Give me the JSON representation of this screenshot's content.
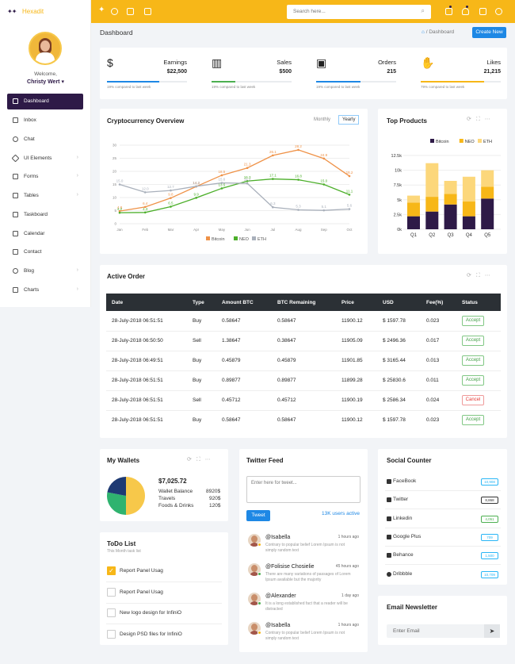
{
  "brand": {
    "name": "Hexadit"
  },
  "search": {
    "placeholder": "Search here..."
  },
  "user": {
    "welcome": "Welcome,",
    "name": "Christy Wert"
  },
  "sidebar": {
    "items": [
      {
        "label": "Dashboard"
      },
      {
        "label": "Inbox"
      },
      {
        "label": "Chat"
      },
      {
        "label": "UI Elements"
      },
      {
        "label": "Forms"
      },
      {
        "label": "Tables"
      },
      {
        "label": "Taskboard"
      },
      {
        "label": "Calendar"
      },
      {
        "label": "Contact"
      },
      {
        "label": "Blog"
      },
      {
        "label": "Charts"
      }
    ]
  },
  "page": {
    "title": "Dashboard",
    "breadcrumb": "Dashboard",
    "create_label": "Create New"
  },
  "stats": [
    {
      "label": "Earnings",
      "value": "$22,500",
      "note": "19% compared to last week",
      "progress": 0.65,
      "color": "#1e88e5",
      "icon": "dollar-icon"
    },
    {
      "label": "Sales",
      "value": "$500",
      "note": "19% compared to last week",
      "progress": 0.3,
      "color": "#4caf50",
      "icon": "bar-chart-icon"
    },
    {
      "label": "Orders",
      "value": "215",
      "note": "19% compared to last week",
      "progress": 0.55,
      "color": "#1e88e5",
      "icon": "cart-icon"
    },
    {
      "label": "Likes",
      "value": "21,215",
      "note": "79% compared to last week",
      "progress": 0.79,
      "color": "#f7b718",
      "icon": "thumbs-up-icon"
    }
  ],
  "crypto": {
    "title": "Cryptocurrency Overview",
    "monthly_label": "Monthly",
    "yearly_label": "Yearly"
  },
  "top_products": {
    "title": "Top Products"
  },
  "chart_data": [
    {
      "type": "line",
      "title": "Cryptocurrency Overview",
      "x": [
        "Jan",
        "Feb",
        "Mar",
        "Apr",
        "May",
        "Jun",
        "Jul",
        "Aug",
        "Sep",
        "Oct"
      ],
      "ylim": [
        0,
        30
      ],
      "series": [
        {
          "name": "Bitcoin",
          "color": "#ef9248",
          "values": [
            4.8,
            6.4,
            9.8,
            14.2,
            18.5,
            21.3,
            26.1,
            28.2,
            24.9,
            18.2
          ]
        },
        {
          "name": "NEO",
          "color": "#4caf2a",
          "values": [
            4.2,
            4.3,
            6.5,
            9.9,
            13.5,
            16.3,
            17.1,
            16.8,
            15.0,
            11.1
          ]
        },
        {
          "name": "ETH",
          "color": "#a9b0bb",
          "values": [
            15.0,
            12.0,
            12.7,
            14.3,
            15.6,
            15.4,
            6.3,
            5.3,
            5.1,
            5.6
          ]
        }
      ],
      "labels": {
        "Bitcoin": [
          "4.8",
          "6.4",
          "9.8",
          "14.2",
          "18.5",
          "21.3",
          "26.1",
          "28.2",
          "24.9",
          "18.2"
        ],
        "NEO": [
          "4.2",
          "4.3",
          "6.5",
          "9.9",
          "13.5",
          "16.3",
          "17.1",
          "16.8",
          "15.0",
          "11.1"
        ],
        "ETH": [
          "15.0",
          "12.0",
          "12.7",
          "14.3",
          "15.6",
          "15.4",
          "6.3",
          "5.3",
          "5.1",
          "5.6"
        ]
      },
      "yticks": [
        "0",
        "5",
        "10",
        "15",
        "20",
        "25",
        "30"
      ],
      "legend": [
        "Bitcoin",
        "NEO",
        "ETH"
      ]
    },
    {
      "type": "bar",
      "stacked": true,
      "title": "Top Products",
      "categories": [
        "Q1",
        "Q2",
        "Q3",
        "Q4",
        "Q5"
      ],
      "ylim": [
        0,
        12.5
      ],
      "yticks": [
        "0k",
        "2.5k",
        "5k",
        "7.5k",
        "10k",
        "12.5k"
      ],
      "series": [
        {
          "name": "Bitcoin",
          "color": "#2e1a47",
          "values": [
            2.2,
            3.0,
            4.2,
            2.2,
            5.2
          ]
        },
        {
          "name": "NEO",
          "color": "#f7b718",
          "values": [
            2.3,
            2.5,
            1.8,
            2.5,
            2.0
          ]
        },
        {
          "name": "ETH",
          "color": "#fcd77b",
          "values": [
            1.2,
            5.7,
            2.2,
            4.2,
            2.8
          ]
        }
      ]
    }
  ],
  "orders": {
    "title": "Active Order",
    "headers": [
      "Date",
      "Type",
      "Amount BTC",
      "BTC Remaining",
      "Price",
      "USD",
      "Fee(%)",
      "Status"
    ],
    "rows": [
      [
        "28-July-2018 06:51:51",
        "Buy",
        "0.58647",
        "0.58647",
        "11900.12",
        "$ 1597.78",
        "0.023",
        "Accept"
      ],
      [
        "28-July-2018 06:50:50",
        "Sell",
        "1.38647",
        "0.38647",
        "11905.09",
        "$ 2496.36",
        "0.017",
        "Accept"
      ],
      [
        "28-July-2018 06:49:51",
        "Buy",
        "0.45879",
        "0.45879",
        "11901.85",
        "$ 3165.44",
        "0.013",
        "Accept"
      ],
      [
        "28-July-2018 06:51:51",
        "Buy",
        "0.89877",
        "0.89877",
        "11899.28",
        "$ 25830.6",
        "0.011",
        "Accept"
      ],
      [
        "28-July-2018 06:51:51",
        "Sell",
        "0.45712",
        "0.45712",
        "11900.19",
        "$ 2586.34",
        "0.024",
        "Cancel"
      ],
      [
        "28-July-2018 06:51:51",
        "Buy",
        "0.58647",
        "0.58647",
        "11900.12",
        "$ 1597.78",
        "0.023",
        "Accept"
      ]
    ]
  },
  "wallets": {
    "title": "My Wallets",
    "total": "$7,025.72",
    "items": [
      {
        "label": "Wallet Balance",
        "value": "8920$"
      },
      {
        "label": "Travels",
        "value": "920$"
      },
      {
        "label": "Foods & Drinks",
        "value": "120$"
      }
    ],
    "pie": [
      {
        "name": "Wallet Balance",
        "color": "#f7c84a",
        "share": 0.5
      },
      {
        "name": "Travels",
        "color": "#2fb36f",
        "share": 0.28
      },
      {
        "name": "Foods & Drinks",
        "color": "#1e3a73",
        "share": 0.22
      }
    ]
  },
  "todo": {
    "title": "ToDo List",
    "subtitle": "This Month task list",
    "items": [
      {
        "text": "Report Panel Usag",
        "done": true
      },
      {
        "text": "Report Panel Usag",
        "done": false
      },
      {
        "text": "New logo design for InfiniO",
        "done": false
      },
      {
        "text": "Design PSD files for InfiniO",
        "done": false
      }
    ]
  },
  "twitter": {
    "title": "Twitter Feed",
    "placeholder": "Enter here for tweet...",
    "tweet_label": "Tweet",
    "active_users": "13K users active",
    "feed": [
      {
        "name": "@Isabella",
        "time": "1 hours ago",
        "msg": "Contrary to popular belief Lorem Ipsum is not simply random text",
        "status": "#f7b718"
      },
      {
        "name": "@Folisise Chosielie",
        "time": "45 hours ago",
        "msg": "There are many variations of passages of Lorem Ipsum available but the majority",
        "status": "#4caf50"
      },
      {
        "name": "@Alexander",
        "time": "1 day ago",
        "msg": "It is a long established fact that a reader will be distracted",
        "status": "#4caf50"
      },
      {
        "name": "@Isabella",
        "time": "1 hours ago",
        "msg": "Contrary to popular belief Lorem Ipsum is not simply random text",
        "status": "#f7b718"
      }
    ]
  },
  "social": {
    "title": "Social Counter",
    "items": [
      {
        "label": "FaceBook",
        "count": "10,908",
        "color": "#29b6f6"
      },
      {
        "label": "Twitter",
        "count": "8,868",
        "color": "#333333"
      },
      {
        "label": "Linkedin",
        "count": "4,051",
        "color": "#4caf50"
      },
      {
        "label": "Google Plus",
        "count": "709",
        "color": "#29b6f6"
      },
      {
        "label": "Behance",
        "count": "1,500",
        "color": "#29b6f6"
      },
      {
        "label": "Dribbble",
        "count": "10,709",
        "color": "#29b6f6"
      }
    ]
  },
  "newsletter": {
    "title": "Email Newsletter",
    "placeholder": "Enter Email"
  }
}
